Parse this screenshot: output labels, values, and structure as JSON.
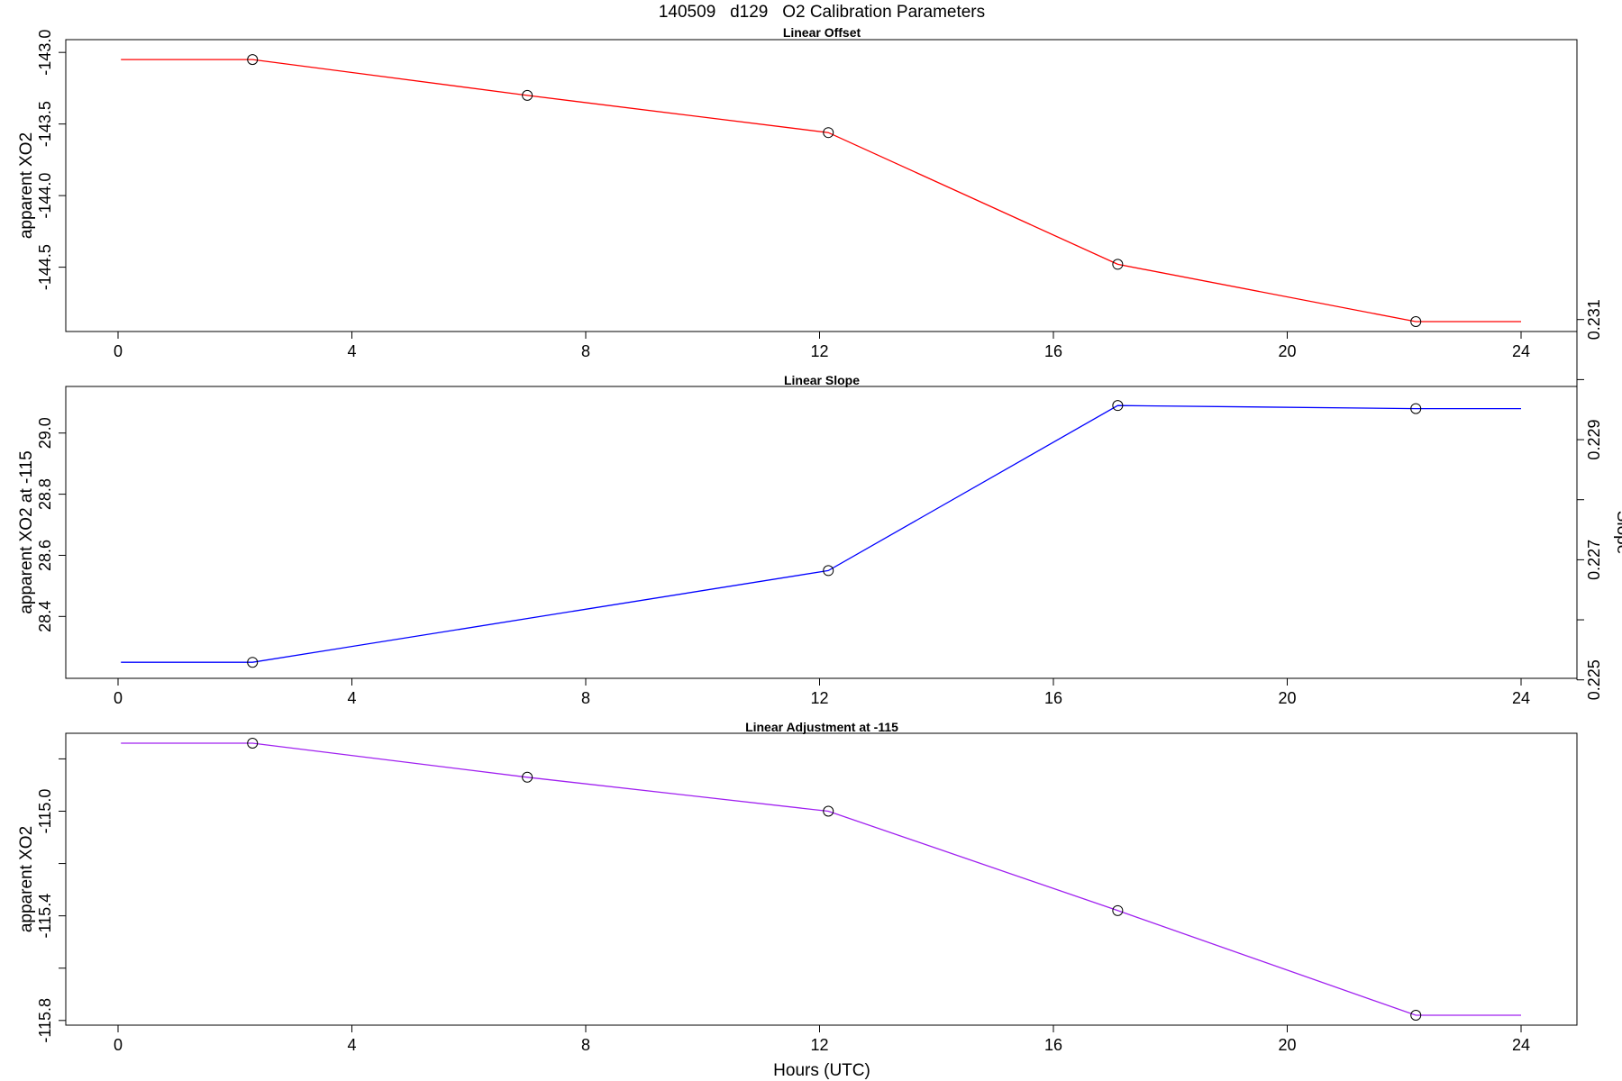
{
  "figure": {
    "title": "140509   d129   O2 Calibration Parameters",
    "xlabel": "Hours (UTC)"
  },
  "chart_data": [
    {
      "type": "line",
      "title": "Linear Offset",
      "xlabel": "",
      "ylabel": "apparent XO2",
      "xlim": [
        0,
        24
      ],
      "ylim": [
        -144.88,
        -142.98
      ],
      "xticks": [
        0,
        4,
        8,
        12,
        16,
        20,
        24
      ],
      "yticks": [
        -143.0,
        -143.5,
        -144.0,
        -144.5
      ],
      "ytick_labels": [
        "-143.0",
        "-143.5",
        "-144.0",
        "-144.5"
      ],
      "color": "#ff0000",
      "line_x": [
        0.05,
        2.3,
        7.0,
        12.15,
        17.1,
        22.2,
        24.0
      ],
      "line_y": [
        -143.05,
        -143.05,
        -143.3,
        -143.56,
        -144.48,
        -144.88,
        -144.88
      ],
      "points_x": [
        2.3,
        7.0,
        12.15,
        17.1,
        22.2
      ],
      "points_y": [
        -143.05,
        -143.3,
        -143.56,
        -144.48,
        -144.88
      ]
    },
    {
      "type": "line",
      "title": "Linear Slope",
      "xlabel": "",
      "ylabel": "apparent XO2 at -115",
      "y2label": "Slope",
      "xlim": [
        0,
        24
      ],
      "ylim": [
        28.23,
        29.12
      ],
      "xticks": [
        0,
        4,
        8,
        12,
        16,
        20,
        24
      ],
      "yticks": [
        28.4,
        28.6,
        28.8,
        29.0
      ],
      "ytick_labels": [
        "28.4",
        "28.6",
        "28.8",
        "29.0"
      ],
      "y2ticks": [
        0.225,
        0.226,
        0.227,
        0.228,
        0.229,
        0.23,
        0.231
      ],
      "y2tick_labels": [
        "0.225",
        "",
        "0.227",
        "",
        "0.229",
        "",
        "0.231"
      ],
      "y2_transform": {
        "a": 0.00509,
        "b": 0.0815
      },
      "color": "#0000ff",
      "line_x": [
        0.05,
        2.3,
        12.15,
        17.1,
        22.2,
        24.0
      ],
      "line_y": [
        28.25,
        28.25,
        28.55,
        29.09,
        29.08,
        29.08
      ],
      "points_x": [
        2.3,
        12.15,
        17.1,
        22.2
      ],
      "points_y": [
        28.25,
        28.55,
        29.09,
        29.08
      ]
    },
    {
      "type": "line",
      "title": "Linear Adjustment at -115",
      "xlabel": "Hours (UTC)",
      "ylabel": "apparent XO2",
      "xlim": [
        0,
        24
      ],
      "ylim": [
        -115.78,
        -114.74
      ],
      "xticks": [
        0,
        4,
        8,
        12,
        16,
        20,
        24
      ],
      "yticks": [
        -114.8,
        -115.0,
        -115.2,
        -115.4,
        -115.6,
        -115.8
      ],
      "ytick_labels": [
        "",
        "-115.0",
        "",
        "-115.4",
        "",
        "-115.8"
      ],
      "color": "#a020f0",
      "line_x": [
        0.05,
        2.3,
        7.0,
        12.15,
        17.1,
        22.2,
        24.0
      ],
      "line_y": [
        -114.74,
        -114.74,
        -114.87,
        -115.0,
        -115.38,
        -115.78,
        -115.78
      ],
      "points_x": [
        2.3,
        7.0,
        12.15,
        17.1,
        22.2
      ],
      "points_y": [
        -114.74,
        -114.87,
        -115.0,
        -115.38,
        -115.78
      ]
    }
  ]
}
